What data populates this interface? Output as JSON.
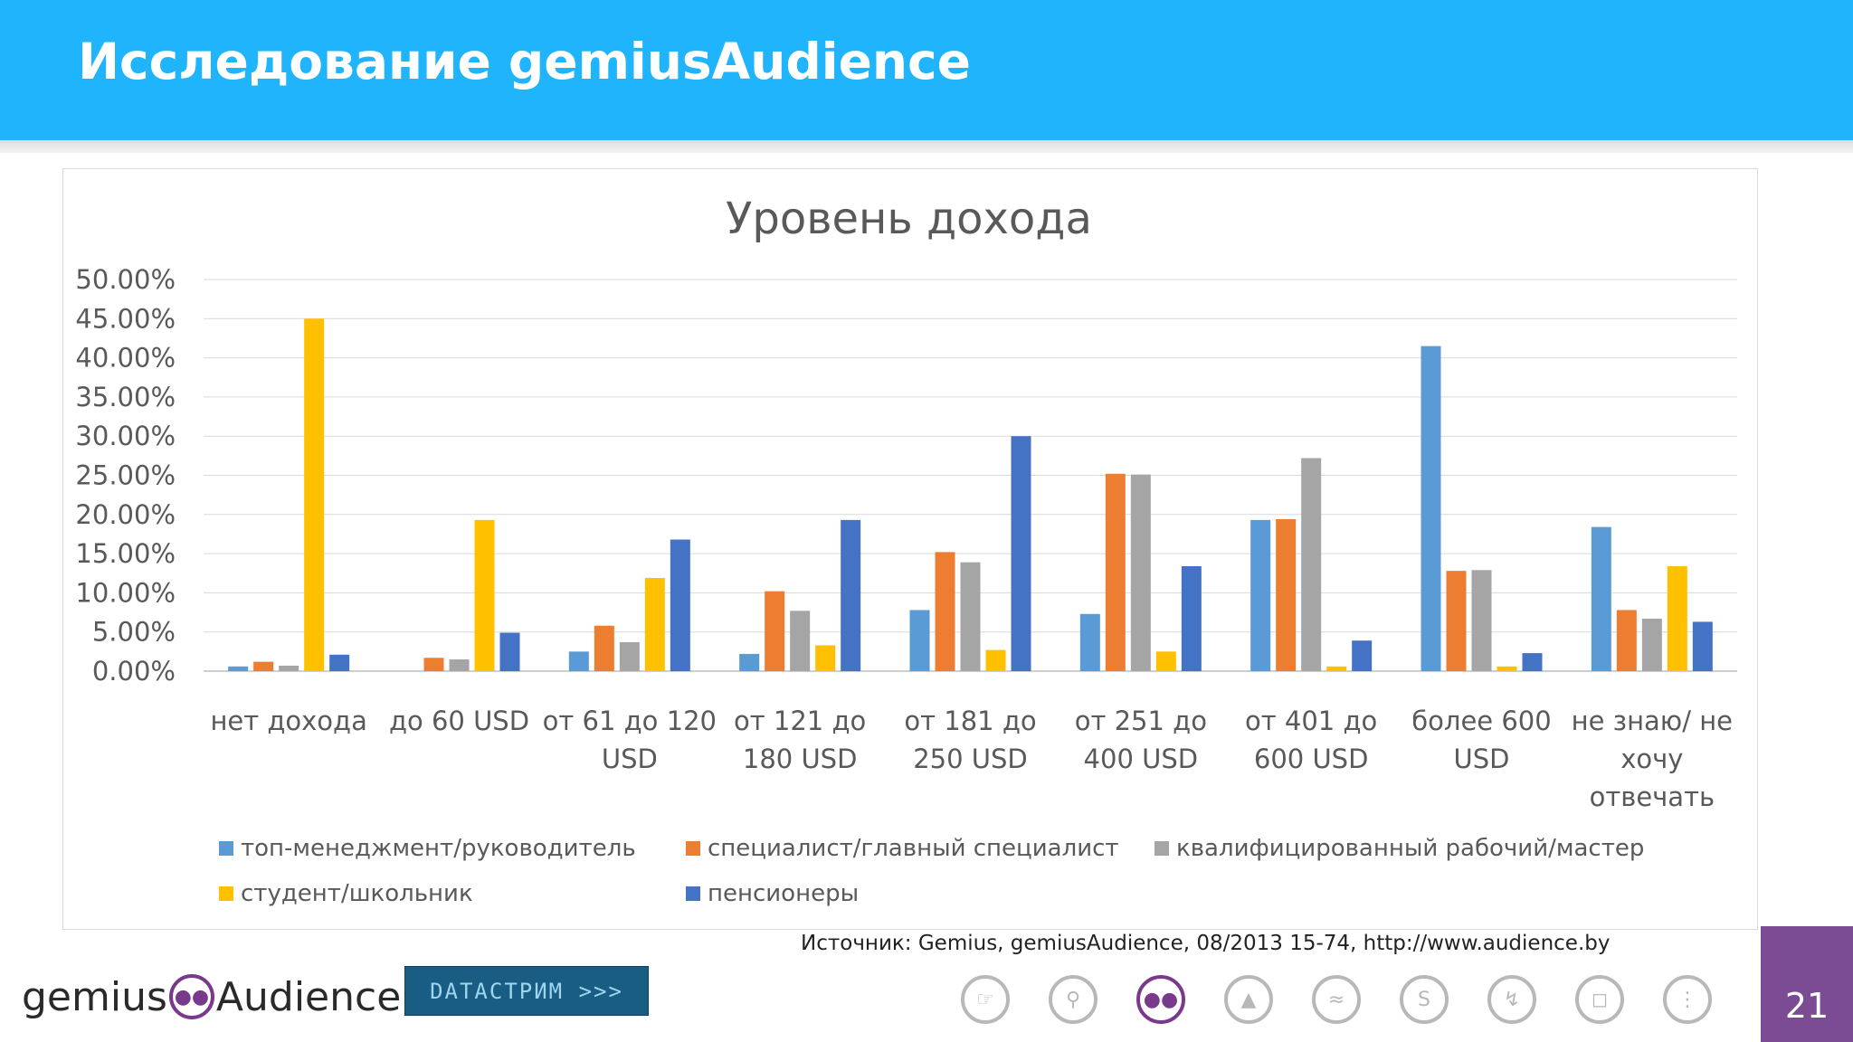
{
  "header": {
    "title": "Исследование gemiusAudience"
  },
  "source_text": "Источник: Gemius, gemiusAudience, 08/2013 15-74,  http://www.audience.by",
  "footer": {
    "logo_left": "gemius",
    "logo_right": "Audience",
    "partner_label": "DATACTPИM >>>",
    "page_number": "21",
    "nav_icons": [
      "pointer-hand-icon",
      "location-pin-icon",
      "audience-people-icon",
      "triangle-tent-icon",
      "wifi-signal-icon",
      "leaf-s-icon",
      "lightning-icon",
      "cart-icon",
      "traffic-light-icon"
    ],
    "active_icon": "audience-people-icon"
  },
  "colors": {
    "header_bg": "#1fb4fb",
    "page_badge": "#7b4b94",
    "accent": "#7a3a8c"
  },
  "chart_data": {
    "type": "bar",
    "title": "Уровень дохода",
    "xlabel": "",
    "ylabel": "",
    "ylim": [
      0,
      50
    ],
    "yticks": [
      "0.00%",
      "5.00%",
      "10.00%",
      "15.00%",
      "20.00%",
      "25.00%",
      "30.00%",
      "35.00%",
      "40.00%",
      "45.00%",
      "50.00%"
    ],
    "grid": true,
    "legend_position": "bottom",
    "categories": [
      [
        "нет дохода"
      ],
      [
        "до 60 USD"
      ],
      [
        "от 61 до 120",
        "USD"
      ],
      [
        "от 121 до",
        "180 USD"
      ],
      [
        "от 181 до",
        "250 USD"
      ],
      [
        "от 251 до",
        "400 USD"
      ],
      [
        "от 401 до",
        "600 USD"
      ],
      [
        "более 600",
        "USD"
      ],
      [
        "не знаю/ не",
        "хочу",
        "отвечать"
      ]
    ],
    "series": [
      {
        "name": "топ-менеджмент/руководитель",
        "color": "#5b9bd5",
        "values": [
          0.6,
          0.0,
          2.5,
          2.2,
          7.8,
          7.3,
          19.3,
          41.5,
          18.4
        ]
      },
      {
        "name": "специалист/главный специалист",
        "color": "#ed7d31",
        "values": [
          1.2,
          1.7,
          5.8,
          10.2,
          15.2,
          25.2,
          19.4,
          12.8,
          7.8
        ]
      },
      {
        "name": "квалифицированный рабочий/мастер",
        "color": "#a5a5a5",
        "values": [
          0.7,
          1.5,
          3.7,
          7.7,
          13.9,
          25.1,
          27.2,
          12.9,
          6.7
        ]
      },
      {
        "name": "студент/школьник",
        "color": "#ffc000",
        "values": [
          45.0,
          19.3,
          11.9,
          3.3,
          2.7,
          2.5,
          0.6,
          0.6,
          13.4
        ]
      },
      {
        "name": "пенсионеры",
        "color": "#4472c4",
        "values": [
          2.1,
          4.9,
          16.8,
          19.3,
          30.0,
          13.4,
          3.9,
          2.3,
          6.3
        ]
      }
    ]
  }
}
